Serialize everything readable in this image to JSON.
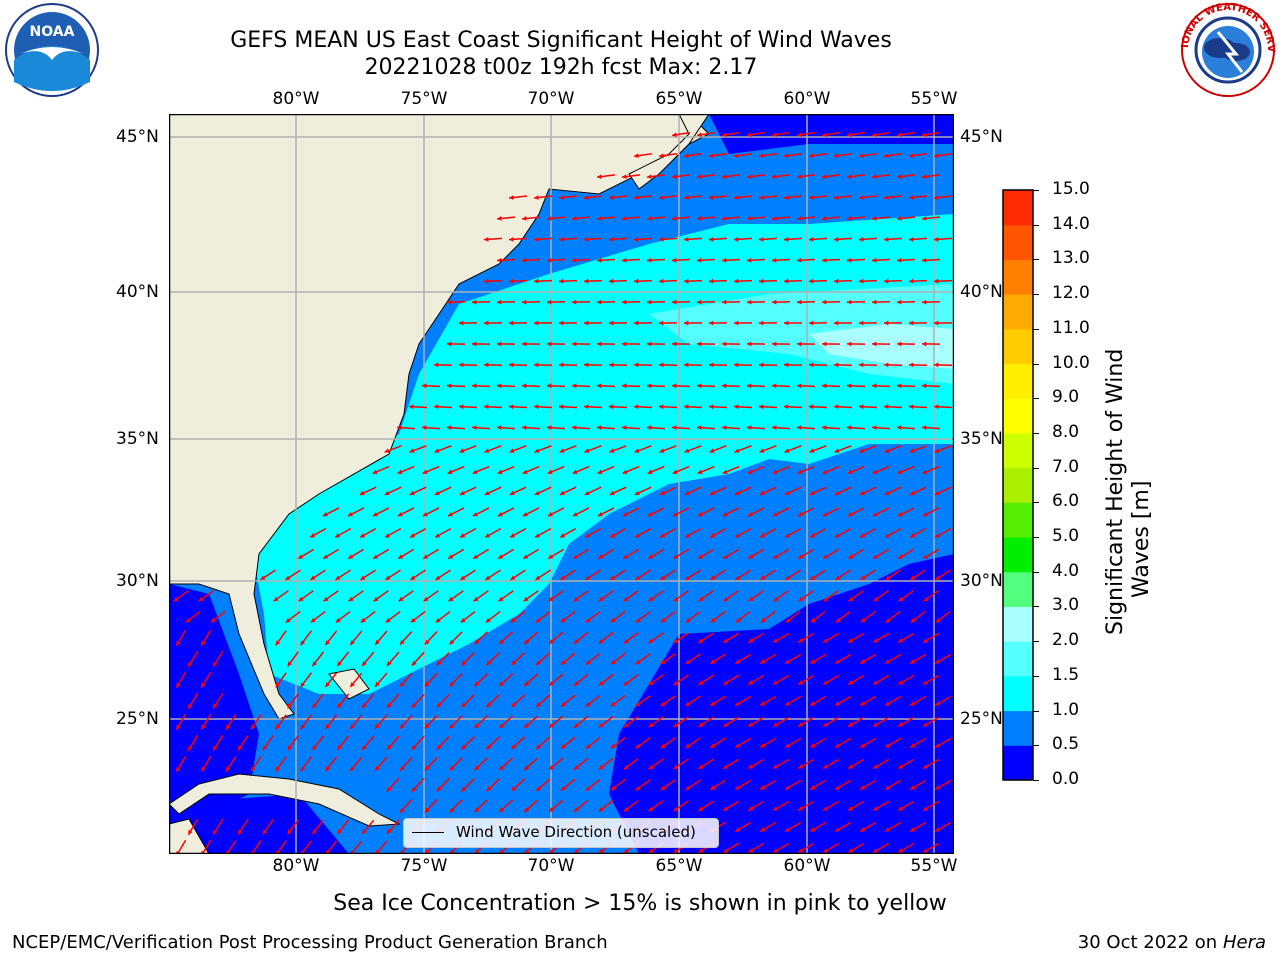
{
  "header": {
    "title_line1": "GEFS MEAN US East Coast Significant Height of Wind Waves",
    "title_line2": "20221028 t00z 192h fcst   Max: 2.17"
  },
  "logos": {
    "left": {
      "text": "NOAA",
      "icon": "noaa-logo"
    },
    "right": {
      "text": "NATIONAL WEATHER SERVICE",
      "icon": "nws-logo"
    }
  },
  "map": {
    "lon_labels": [
      "80°W",
      "75°W",
      "70°W",
      "65°W",
      "60°W",
      "55°W"
    ],
    "lat_labels": [
      "45°N",
      "40°N",
      "35°N",
      "30°N",
      "25°N"
    ],
    "legend_label": "Wind Wave Direction (unscaled)",
    "colors": {
      "land": "#efeedd",
      "band_0_05": "#0000ff",
      "band_05_10": "#0080ff",
      "band_10_15": "#00ffff",
      "band_15_20": "#54ffff",
      "band_20_30": "#aaffff",
      "arrow": "#ff0000",
      "grid": "#b0b0b0"
    }
  },
  "colorbar": {
    "label_line1": "Significant Height of Wind",
    "label_line2": "Waves [m]",
    "ticks": [
      "0.0",
      "0.5",
      "1.0",
      "1.5",
      "2.0",
      "3.0",
      "4.0",
      "5.0",
      "6.0",
      "7.0",
      "8.0",
      "9.0",
      "10.0",
      "11.0",
      "12.0",
      "13.0",
      "14.0",
      "15.0"
    ],
    "colors": [
      "#0000ff",
      "#0080ff",
      "#00ffff",
      "#54ffff",
      "#aaffff",
      "#54ff7f",
      "#00ee00",
      "#55ee00",
      "#aaee00",
      "#ccff00",
      "#ffff00",
      "#ffee00",
      "#ffcc00",
      "#ffaa00",
      "#ff8000",
      "#ff5500",
      "#ff2a00",
      "#ff0000"
    ]
  },
  "notes": {
    "sea_ice": "Sea Ice Concentration > 15% is shown in pink to yellow"
  },
  "footer": {
    "left": "NCEP/EMC/Verification Post Processing Product Generation Branch",
    "right_prefix": "30 Oct 2022 on ",
    "right_machine": "Hera"
  }
}
